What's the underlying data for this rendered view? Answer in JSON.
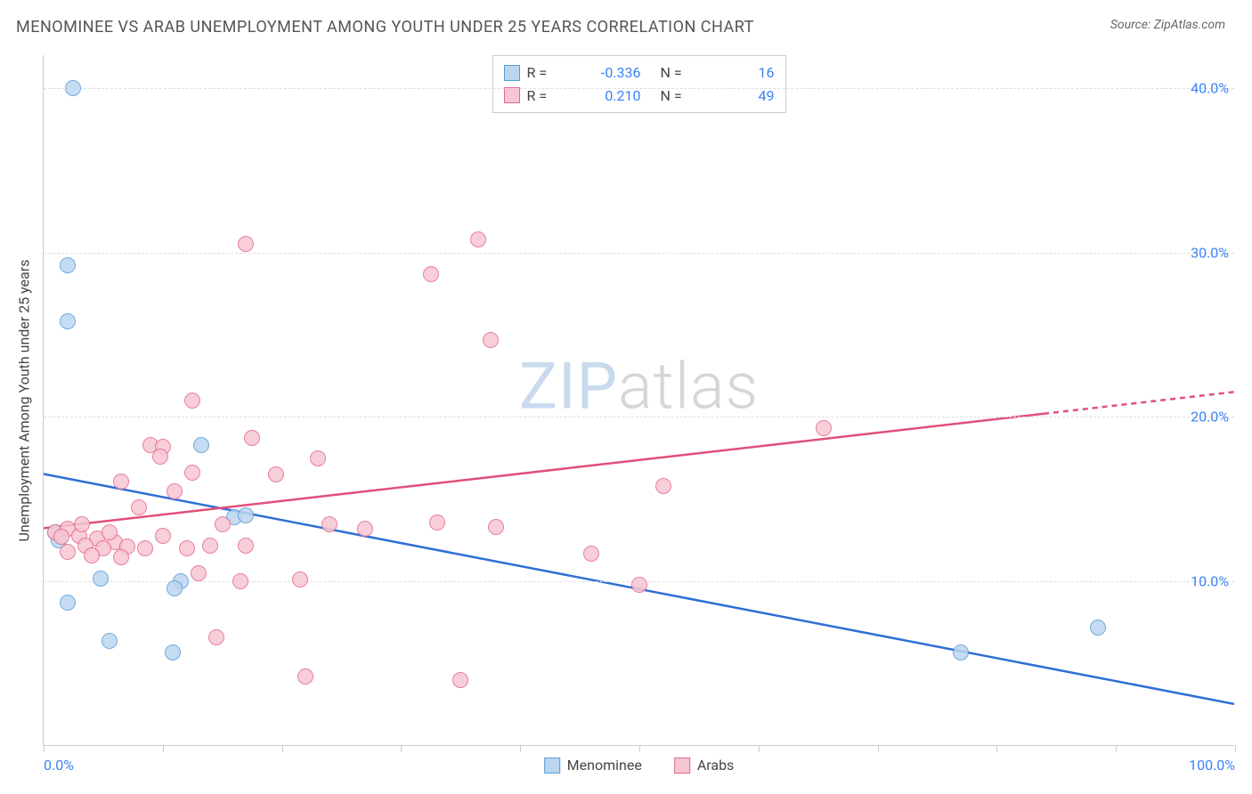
{
  "header": {
    "title": "MENOMINEE VS ARAB UNEMPLOYMENT AMONG YOUTH UNDER 25 YEARS CORRELATION CHART",
    "source": "Source: ZipAtlas.com"
  },
  "chart": {
    "type": "scatter",
    "y_axis_label": "Unemployment Among Youth under 25 years",
    "background_color": "#ffffff",
    "grid_color": "#dddddd",
    "axis_color": "#cccccc",
    "xlim": [
      0,
      100
    ],
    "ylim": [
      0,
      42
    ],
    "x_ticks": [
      0,
      10,
      20,
      30,
      40,
      50,
      60,
      70,
      80,
      90,
      100
    ],
    "x_tick_labels": {
      "0": "0.0%",
      "100": "100.0%"
    },
    "y_ticks": [
      10,
      20,
      30,
      40
    ],
    "y_tick_labels": {
      "10": "10.0%",
      "20": "20.0%",
      "30": "30.0%",
      "40": "40.0%"
    },
    "watermark": {
      "part1": "ZIP",
      "part2": "atlas"
    },
    "marker_radius": 9,
    "series": [
      {
        "name": "Menominee",
        "fill_color": "#bcd6f0",
        "stroke_color": "#5b9bd5",
        "R": "-0.336",
        "N": "16",
        "trend": {
          "x1": 0,
          "y1": 16.5,
          "x2": 100,
          "y2": 2.5,
          "solid_until_x": 100,
          "color": "#2e6fd6",
          "width": 2.5
        },
        "points": [
          {
            "x": 2.5,
            "y": 40.0
          },
          {
            "x": 2.0,
            "y": 29.2
          },
          {
            "x": 2.0,
            "y": 25.8
          },
          {
            "x": 13.2,
            "y": 18.3
          },
          {
            "x": 16.0,
            "y": 13.9
          },
          {
            "x": 17.0,
            "y": 14.0
          },
          {
            "x": 1.0,
            "y": 13.0
          },
          {
            "x": 1.3,
            "y": 12.5
          },
          {
            "x": 4.8,
            "y": 10.2
          },
          {
            "x": 11.5,
            "y": 10.0
          },
          {
            "x": 11.0,
            "y": 9.6
          },
          {
            "x": 2.0,
            "y": 8.7
          },
          {
            "x": 5.5,
            "y": 6.4
          },
          {
            "x": 10.8,
            "y": 5.7
          },
          {
            "x": 77.0,
            "y": 5.7
          },
          {
            "x": 88.5,
            "y": 7.2
          }
        ]
      },
      {
        "name": "Arabs",
        "fill_color": "#f7c6d3",
        "stroke_color": "#e26a8c",
        "R": "0.210",
        "N": "49",
        "trend": {
          "x1": 0,
          "y1": 13.2,
          "x2": 100,
          "y2": 21.5,
          "solid_until_x": 84,
          "color": "#e05078",
          "width": 2.5
        },
        "points": [
          {
            "x": 17.0,
            "y": 30.5
          },
          {
            "x": 36.5,
            "y": 30.8
          },
          {
            "x": 32.5,
            "y": 28.7
          },
          {
            "x": 37.5,
            "y": 24.7
          },
          {
            "x": 12.5,
            "y": 21.0
          },
          {
            "x": 17.5,
            "y": 18.7
          },
          {
            "x": 65.5,
            "y": 19.3
          },
          {
            "x": 9.0,
            "y": 18.3
          },
          {
            "x": 10.0,
            "y": 18.2
          },
          {
            "x": 23.0,
            "y": 17.5
          },
          {
            "x": 9.8,
            "y": 17.6
          },
          {
            "x": 6.5,
            "y": 16.1
          },
          {
            "x": 52.0,
            "y": 15.8
          },
          {
            "x": 12.5,
            "y": 16.6
          },
          {
            "x": 19.5,
            "y": 16.5
          },
          {
            "x": 11.0,
            "y": 15.5
          },
          {
            "x": 33.0,
            "y": 13.6
          },
          {
            "x": 8.0,
            "y": 14.5
          },
          {
            "x": 15.0,
            "y": 13.5
          },
          {
            "x": 24.0,
            "y": 13.5
          },
          {
            "x": 27.0,
            "y": 13.2
          },
          {
            "x": 38.0,
            "y": 13.3
          },
          {
            "x": 1.0,
            "y": 13.0
          },
          {
            "x": 2.0,
            "y": 13.2
          },
          {
            "x": 3.0,
            "y": 12.8
          },
          {
            "x": 4.5,
            "y": 12.6
          },
          {
            "x": 6.0,
            "y": 12.4
          },
          {
            "x": 3.5,
            "y": 12.2
          },
          {
            "x": 5.0,
            "y": 12.0
          },
          {
            "x": 7.0,
            "y": 12.1
          },
          {
            "x": 8.5,
            "y": 12.0
          },
          {
            "x": 10.0,
            "y": 12.8
          },
          {
            "x": 12.0,
            "y": 12.0
          },
          {
            "x": 14.0,
            "y": 12.2
          },
          {
            "x": 17.0,
            "y": 12.2
          },
          {
            "x": 2.0,
            "y": 11.8
          },
          {
            "x": 4.0,
            "y": 11.6
          },
          {
            "x": 6.5,
            "y": 11.5
          },
          {
            "x": 46.0,
            "y": 11.7
          },
          {
            "x": 13.0,
            "y": 10.5
          },
          {
            "x": 16.5,
            "y": 10.0
          },
          {
            "x": 21.5,
            "y": 10.1
          },
          {
            "x": 50.0,
            "y": 9.8
          },
          {
            "x": 14.5,
            "y": 6.6
          },
          {
            "x": 22.0,
            "y": 4.2
          },
          {
            "x": 35.0,
            "y": 4.0
          },
          {
            "x": 1.5,
            "y": 12.7
          },
          {
            "x": 3.2,
            "y": 13.5
          },
          {
            "x": 5.5,
            "y": 13.0
          }
        ]
      }
    ],
    "bottom_legend": [
      {
        "label": "Menominee",
        "fill": "#bcd6f0",
        "stroke": "#5b9bd5"
      },
      {
        "label": "Arabs",
        "fill": "#f7c6d3",
        "stroke": "#e26a8c"
      }
    ]
  }
}
